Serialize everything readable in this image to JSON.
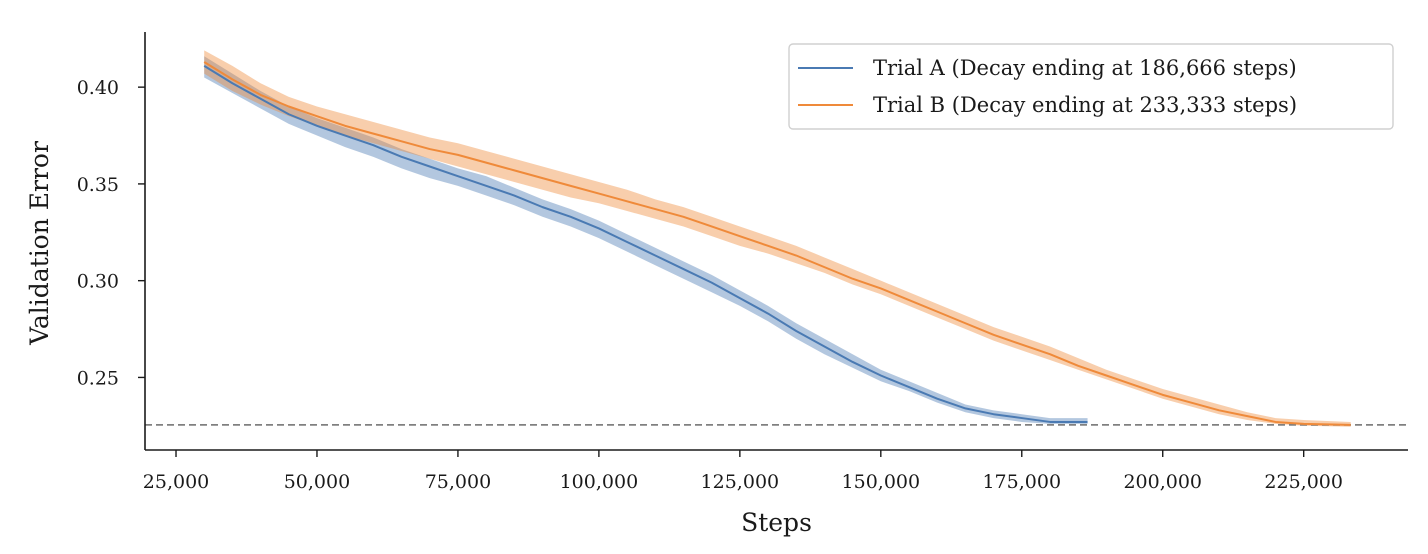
{
  "chart_data": {
    "type": "line",
    "xlabel": "Steps",
    "ylabel": "Validation Error",
    "xlim": [
      19500,
      243500
    ],
    "ylim": [
      0.2125,
      0.4285
    ],
    "xticks": [
      25000,
      50000,
      75000,
      100000,
      125000,
      150000,
      175000,
      200000,
      225000
    ],
    "xtick_labels": [
      "25,000",
      "50,000",
      "75,000",
      "100,000",
      "125,000",
      "150,000",
      "175,000",
      "200,000",
      "225,000"
    ],
    "yticks": [
      0.25,
      0.3,
      0.35,
      0.4
    ],
    "ytick_labels": [
      "0.25",
      "0.30",
      "0.35",
      "0.40"
    ],
    "grid": false,
    "legend_position": "upper-right",
    "reference_line": {
      "y": 0.2255,
      "style": "dashed",
      "color": "#808080"
    },
    "series": [
      {
        "name": "Trial A (Decay ending at 186,666 steps)",
        "color": "#4a7ab3",
        "x": [
          30000,
          35000,
          40000,
          45000,
          50000,
          55000,
          60000,
          65000,
          70000,
          75000,
          80000,
          85000,
          90000,
          95000,
          100000,
          105000,
          110000,
          115000,
          120000,
          125000,
          130000,
          135000,
          140000,
          145000,
          150000,
          155000,
          160000,
          165000,
          170000,
          175000,
          180000,
          186666
        ],
        "y": [
          0.411,
          0.402,
          0.394,
          0.386,
          0.38,
          0.375,
          0.37,
          0.364,
          0.359,
          0.354,
          0.349,
          0.344,
          0.338,
          0.333,
          0.327,
          0.32,
          0.313,
          0.306,
          0.299,
          0.291,
          0.283,
          0.274,
          0.266,
          0.258,
          0.251,
          0.245,
          0.239,
          0.234,
          0.231,
          0.229,
          0.227,
          0.227
        ],
        "lower": [
          0.405,
          0.397,
          0.389,
          0.381,
          0.375,
          0.369,
          0.364,
          0.358,
          0.353,
          0.349,
          0.344,
          0.339,
          0.333,
          0.328,
          0.322,
          0.315,
          0.308,
          0.301,
          0.294,
          0.287,
          0.279,
          0.27,
          0.262,
          0.255,
          0.248,
          0.243,
          0.237,
          0.232,
          0.229,
          0.227,
          0.226,
          0.226
        ],
        "upper": [
          0.416,
          0.407,
          0.398,
          0.39,
          0.384,
          0.379,
          0.374,
          0.368,
          0.363,
          0.358,
          0.354,
          0.348,
          0.342,
          0.337,
          0.331,
          0.324,
          0.317,
          0.31,
          0.303,
          0.295,
          0.287,
          0.278,
          0.27,
          0.262,
          0.254,
          0.248,
          0.242,
          0.236,
          0.233,
          0.231,
          0.229,
          0.229
        ]
      },
      {
        "name": "Trial B (Decay ending at 233,333 steps)",
        "color": "#ef8a3a",
        "x": [
          30000,
          35000,
          40000,
          45000,
          50000,
          55000,
          60000,
          65000,
          70000,
          75000,
          80000,
          85000,
          90000,
          95000,
          100000,
          105000,
          110000,
          115000,
          120000,
          125000,
          130000,
          135000,
          140000,
          145000,
          150000,
          155000,
          160000,
          165000,
          170000,
          175000,
          180000,
          185000,
          190000,
          195000,
          200000,
          205000,
          210000,
          215000,
          220000,
          225000,
          233333
        ],
        "y": [
          0.413,
          0.404,
          0.396,
          0.39,
          0.385,
          0.38,
          0.376,
          0.372,
          0.368,
          0.365,
          0.361,
          0.357,
          0.353,
          0.349,
          0.345,
          0.341,
          0.337,
          0.333,
          0.328,
          0.323,
          0.318,
          0.313,
          0.307,
          0.301,
          0.296,
          0.29,
          0.284,
          0.278,
          0.272,
          0.267,
          0.262,
          0.256,
          0.251,
          0.246,
          0.241,
          0.237,
          0.233,
          0.23,
          0.227,
          0.226,
          0.2255
        ],
        "lower": [
          0.407,
          0.398,
          0.391,
          0.385,
          0.38,
          0.375,
          0.371,
          0.367,
          0.363,
          0.359,
          0.355,
          0.351,
          0.347,
          0.343,
          0.34,
          0.336,
          0.332,
          0.328,
          0.323,
          0.318,
          0.314,
          0.309,
          0.304,
          0.298,
          0.293,
          0.287,
          0.281,
          0.275,
          0.269,
          0.264,
          0.259,
          0.254,
          0.249,
          0.244,
          0.239,
          0.235,
          0.231,
          0.228,
          0.226,
          0.225,
          0.2245
        ],
        "upper": [
          0.419,
          0.411,
          0.402,
          0.395,
          0.39,
          0.386,
          0.382,
          0.378,
          0.374,
          0.371,
          0.367,
          0.363,
          0.359,
          0.355,
          0.351,
          0.347,
          0.342,
          0.338,
          0.333,
          0.328,
          0.323,
          0.318,
          0.312,
          0.306,
          0.3,
          0.294,
          0.288,
          0.282,
          0.276,
          0.271,
          0.266,
          0.26,
          0.254,
          0.249,
          0.244,
          0.24,
          0.236,
          0.232,
          0.229,
          0.228,
          0.227
        ]
      }
    ]
  }
}
